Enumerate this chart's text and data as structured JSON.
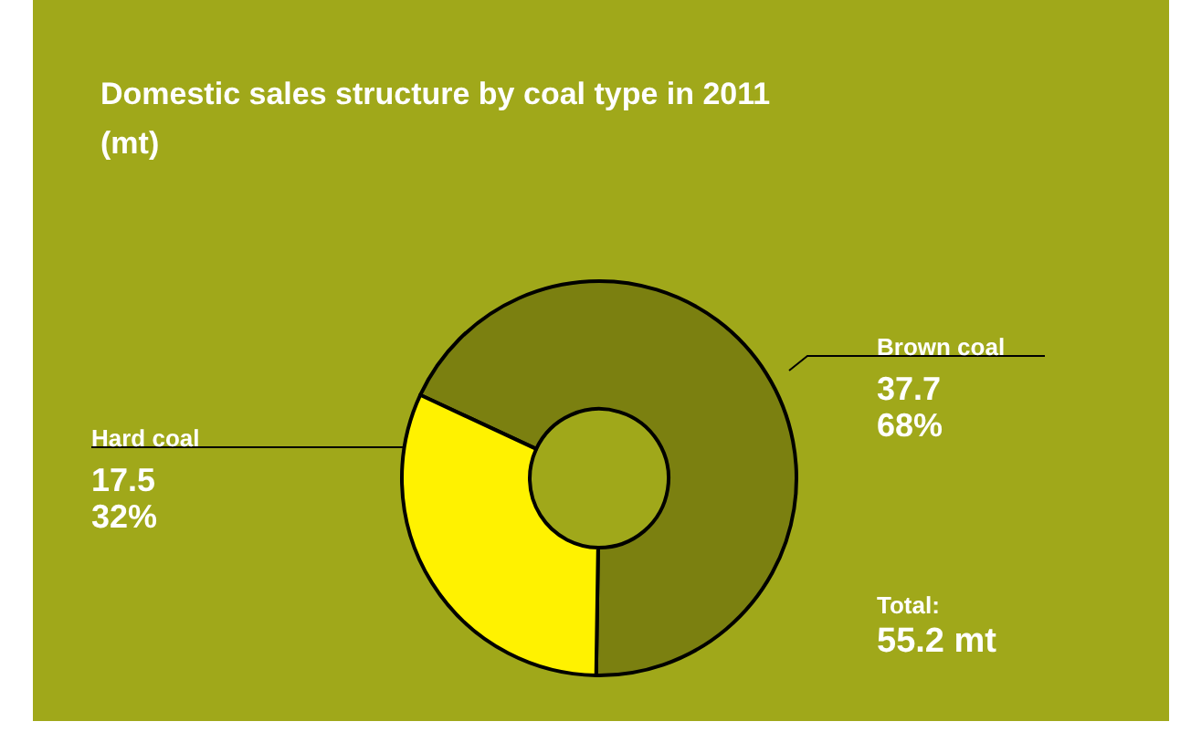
{
  "chart_data": {
    "type": "donut",
    "title": "Domestic sales structure by coal type in 2011",
    "subtitle": "(mt)",
    "categories": [
      "Brown coal",
      "Hard coal"
    ],
    "values": [
      37.7,
      17.5
    ],
    "colors": [
      "#7b8010",
      "#fff200"
    ],
    "value_labels": [
      "37.7\n68%",
      "17.5\n32%"
    ],
    "annotations": [
      "Total:",
      "55.2 mt"
    ],
    "legend": false
  }
}
